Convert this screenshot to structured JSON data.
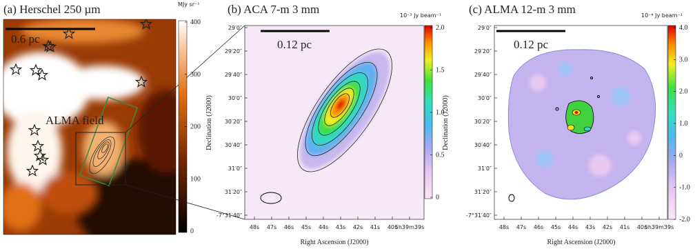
{
  "panel_a": {
    "title": "(a) Herschel 250 µm",
    "colorbar_unit": "MJy sr⁻¹",
    "colorbar_ticks": [
      "400",
      "300",
      "200",
      "100",
      "0"
    ],
    "scale_bar": "0.6 pc",
    "annotation": "ALMA field"
  },
  "panel_b": {
    "title": "(b) ACA 7-m 3 mm",
    "colorbar_unit": "10⁻³ Jy beam⁻¹",
    "colorbar_ticks": [
      "2.0",
      "1.5",
      "1.0",
      "0.5",
      "0"
    ],
    "scale_bar": "0.12 pc",
    "y_label": "Declination (J2000)",
    "x_label": "Right Ascension (J2000)",
    "y_ticks": [
      "29′0″",
      "29′20″",
      "29′40″",
      "30′0″",
      "30′20″",
      "30′40″",
      "31′0″",
      "31′20″",
      "-7°31′40″"
    ],
    "x_ticks": [
      "48s",
      "47s",
      "46s",
      "45s",
      "44s",
      "43s",
      "42s",
      "41s",
      "40s",
      "5h39m39s"
    ]
  },
  "panel_c": {
    "title": "(c) ALMA 12-m 3 mm",
    "colorbar_unit": "10⁻⁴ Jy beam⁻¹",
    "colorbar_ticks": [
      "4.0",
      "3.0",
      "2.0",
      "1.0",
      "0",
      "-1.0",
      "-2.0"
    ],
    "scale_bar": "0.12 pc",
    "y_label": "Declination (J2000)",
    "x_label": "Right Ascension (J2000)",
    "y_ticks": [
      "29′0″",
      "29′20″",
      "29′40″",
      "30′0″",
      "30′20″",
      "30′40″",
      "31′0″",
      "31′20″",
      "-7°31′40″"
    ],
    "x_ticks": [
      "48s",
      "47s",
      "46s",
      "45s",
      "44s",
      "43s",
      "42s",
      "41s",
      "40s",
      "5h39m39s"
    ]
  }
}
